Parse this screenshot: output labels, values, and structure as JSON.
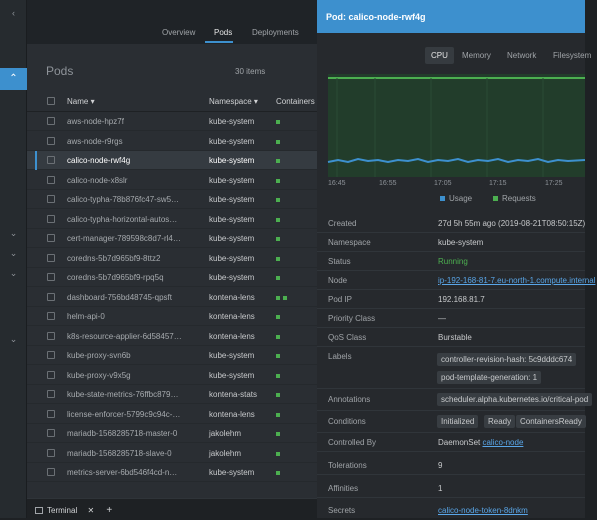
{
  "rail": {
    "icons": [
      "chevron-left-icon",
      "chevron-up-icon",
      "chevron-down-icon",
      "chevron-down-icon",
      "chevron-down-icon",
      "chevron-down-icon"
    ]
  },
  "tabs": {
    "items": [
      "Overview",
      "Pods",
      "Deployments"
    ],
    "selected": "Pods"
  },
  "pods": {
    "title": "Pods",
    "count": "30 items",
    "headers": {
      "name": "Name",
      "namespace": "Namespace",
      "containers": "Containers"
    },
    "rows": [
      {
        "name": "aws-node-hpz7f",
        "namespace": "kube-system",
        "containers": 1
      },
      {
        "name": "aws-node-r9rgs",
        "namespace": "kube-system",
        "containers": 1
      },
      {
        "name": "calico-node-rwf4g",
        "namespace": "kube-system",
        "containers": 1,
        "selected": true
      },
      {
        "name": "calico-node-x8slr",
        "namespace": "kube-system",
        "containers": 1
      },
      {
        "name": "calico-typha-78b876fc47-sw5…",
        "namespace": "kube-system",
        "containers": 1
      },
      {
        "name": "calico-typha-horizontal-autos…",
        "namespace": "kube-system",
        "containers": 1
      },
      {
        "name": "cert-manager-789598c8d7-rl4…",
        "namespace": "kube-system",
        "containers": 1
      },
      {
        "name": "coredns-5b7d965bf9-8ttz2",
        "namespace": "kube-system",
        "containers": 1
      },
      {
        "name": "coredns-5b7d965bf9-rpq5q",
        "namespace": "kube-system",
        "containers": 1
      },
      {
        "name": "dashboard-756bd48745-qpsft",
        "namespace": "kontena-lens",
        "containers": 2
      },
      {
        "name": "helm-api-0",
        "namespace": "kontena-lens",
        "containers": 1
      },
      {
        "name": "k8s-resource-applier-6d58457…",
        "namespace": "kontena-lens",
        "containers": 1
      },
      {
        "name": "kube-proxy-svn6b",
        "namespace": "kube-system",
        "containers": 1
      },
      {
        "name": "kube-proxy-v9x5g",
        "namespace": "kube-system",
        "containers": 1
      },
      {
        "name": "kube-state-metrics-76ffbc879…",
        "namespace": "kontena-stats",
        "containers": 1
      },
      {
        "name": "license-enforcer-5799c9c94c-…",
        "namespace": "kontena-lens",
        "containers": 1
      },
      {
        "name": "mariadb-1568285718-master-0",
        "namespace": "jakolehm",
        "containers": 1
      },
      {
        "name": "mariadb-1568285718-slave-0",
        "namespace": "jakolehm",
        "containers": 1
      },
      {
        "name": "metrics-server-6bd546f4cd-n…",
        "namespace": "kube-system",
        "containers": 1
      }
    ]
  },
  "terminal": {
    "label": "Terminal"
  },
  "drawer": {
    "title": "Pod: calico-node-rwf4g",
    "metric_tabs": [
      "CPU",
      "Memory",
      "Network",
      "Filesystem"
    ],
    "metric_selected": "CPU",
    "time_ticks": [
      "16:45",
      "16:55",
      "17:05",
      "17:15",
      "17:25"
    ],
    "legend": [
      {
        "label": "Usage",
        "color": "#3d90ce"
      },
      {
        "label": "Requests",
        "color": "#4caf50"
      }
    ],
    "details": {
      "created_k": "Created",
      "created_v": "27d 5h 55m ago (2019-08-21T08:50:15Z)",
      "namespace_k": "Namespace",
      "namespace_v": "kube-system",
      "status_k": "Status",
      "status_v": "Running",
      "node_k": "Node",
      "node_v": "ip-192-168-81-7.eu-north-1.compute.internal",
      "podip_k": "Pod IP",
      "podip_v": "192.168.81.7",
      "priority_k": "Priority Class",
      "priority_v": "—",
      "qos_k": "QoS Class",
      "qos_v": "Burstable",
      "labels_k": "Labels",
      "labels": [
        "controller-revision-hash: 5c9dddc674",
        "pod-template-generation: 1"
      ],
      "annotations_k": "Annotations",
      "annotations_v": "scheduler.alpha.kubernetes.io/critical-pod",
      "conditions_k": "Conditions",
      "conditions": [
        "Initialized",
        "Ready",
        "ContainersReady"
      ],
      "controlled_k": "Controlled By",
      "controlled_prefix": "DaemonSet",
      "controlled_link": "calico-node",
      "tolerations_k": "Tolerations",
      "tolerations_v": "9",
      "affinities_k": "Affinities",
      "affinities_v": "1",
      "secrets_k": "Secrets",
      "secrets_v": "calico-node-token-8dnkm"
    }
  },
  "colors": {
    "accent": "#3d90ce",
    "running": "#4caf50"
  }
}
